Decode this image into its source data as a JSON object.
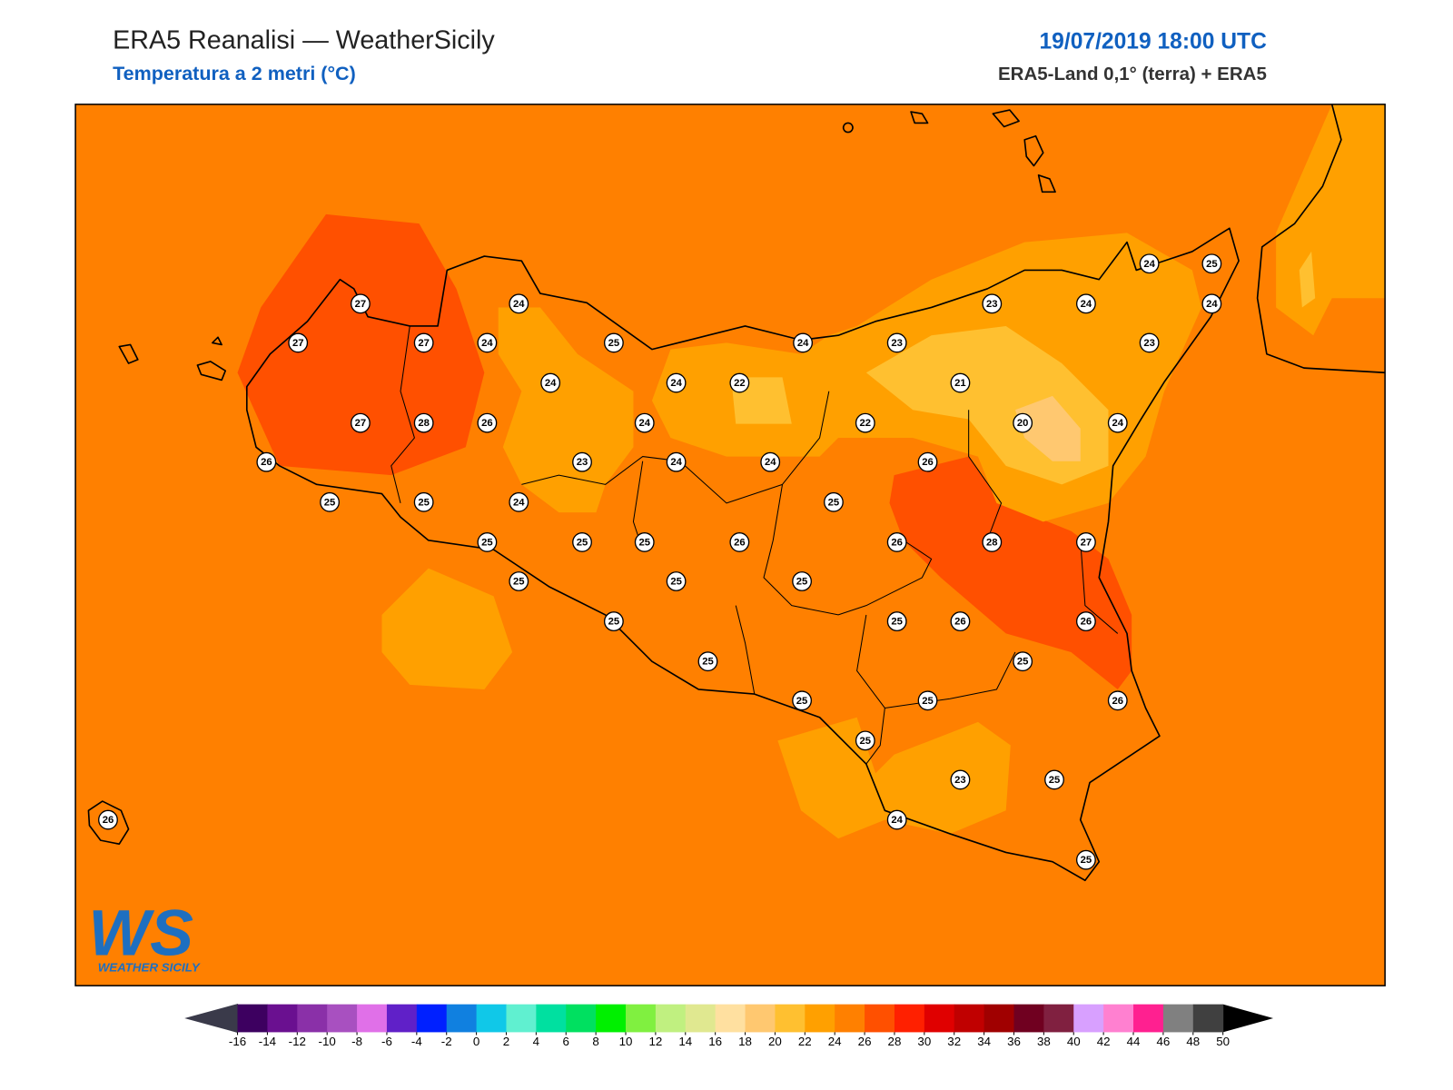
{
  "header": {
    "title": "ERA5 Reanalisi — WeatherSicily",
    "subtitle": "Temperatura a 2 metri (°C)",
    "datetime": "19/07/2019 18:00 UTC",
    "source": "ERA5-Land 0,1° (terra) + ERA5"
  },
  "stations": [
    27,
    24,
    27,
    27,
    24,
    25,
    24,
    23,
    23,
    24,
    24,
    25,
    24,
    23,
    24,
    24,
    22,
    21,
    27,
    28,
    26,
    24,
    22,
    20,
    24,
    26,
    23,
    24,
    24,
    26,
    25,
    25,
    24,
    25,
    25,
    25,
    25,
    26,
    26,
    28,
    27,
    25,
    25,
    25,
    25,
    25,
    26,
    26,
    25,
    25,
    25,
    25,
    26,
    25,
    23,
    25,
    24,
    25,
    26
  ],
  "colorbar": {
    "ticks": [
      -16,
      -14,
      -12,
      -10,
      -8,
      -6,
      -4,
      -2,
      0,
      2,
      4,
      6,
      8,
      10,
      12,
      14,
      16,
      18,
      20,
      22,
      24,
      26,
      28,
      30,
      32,
      34,
      36,
      38,
      40,
      42,
      44,
      46,
      48,
      50
    ],
    "colors": [
      "#3d0060",
      "#6a1090",
      "#8a30a8",
      "#a850c0",
      "#e070e8",
      "#6020c8",
      "#0020ff",
      "#1080e0",
      "#10c8e8",
      "#60f0d0",
      "#00e0a0",
      "#00e060",
      "#00f000",
      "#80f040",
      "#c0f080",
      "#e0e890",
      "#ffe0a0",
      "#ffc870",
      "#ffc030",
      "#ffa000",
      "#ff8000",
      "#ff5000",
      "#ff2000",
      "#e00000",
      "#c00000",
      "#a00000",
      "#700020",
      "#802040",
      "#d8a0ff",
      "#ff80d0",
      "#ff2090",
      "#808080",
      "#404040"
    ],
    "under_color": "#3a3a4a",
    "over_color": "#000000"
  },
  "logo": {
    "mark": "WS",
    "name": "WEATHER SICILY"
  }
}
